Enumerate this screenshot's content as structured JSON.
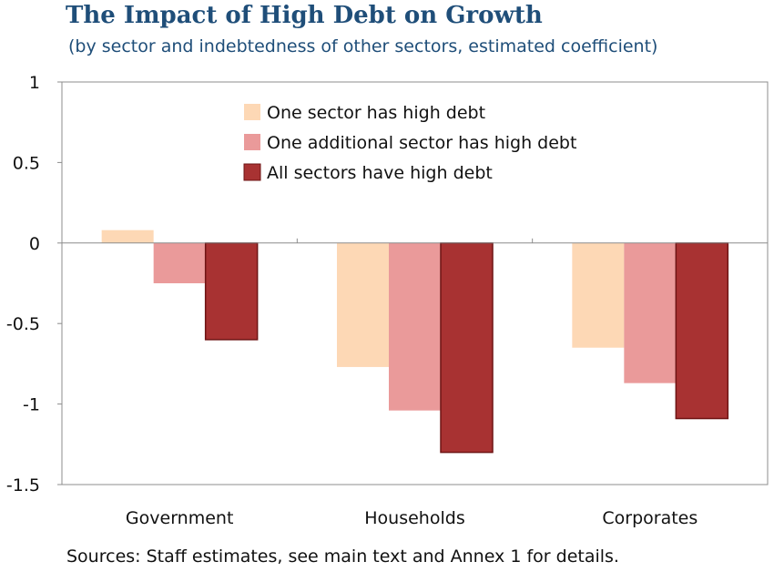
{
  "chart_data": {
    "type": "bar",
    "title": "The Impact of High Debt on Growth",
    "subtitle": "(by sector and indebtedness of other sectors, estimated coefficient)",
    "categories": [
      "Government",
      "Households",
      "Corporates"
    ],
    "series": [
      {
        "name": "One sector has high debt",
        "values": [
          0.08,
          -0.77,
          -0.65
        ],
        "color": "#fdd8b5"
      },
      {
        "name": "One additional sector has high debt",
        "values": [
          -0.25,
          -1.04,
          -0.87
        ],
        "color": "#ea9a9a"
      },
      {
        "name": "All sectors have high debt",
        "values": [
          -0.6,
          -1.3,
          -1.09
        ],
        "color": "#a83232"
      }
    ],
    "ylim": [
      -1.5,
      1
    ],
    "yticks": [
      "1",
      "0.5",
      "0",
      "-0.5",
      "-1",
      "-1.5"
    ],
    "ytick_values": [
      1,
      0.5,
      0,
      -0.5,
      -1,
      -1.5
    ],
    "legend_position": "top-center",
    "grid": false,
    "source": "Sources: Staff estimates, see main text and Annex 1 for details."
  }
}
